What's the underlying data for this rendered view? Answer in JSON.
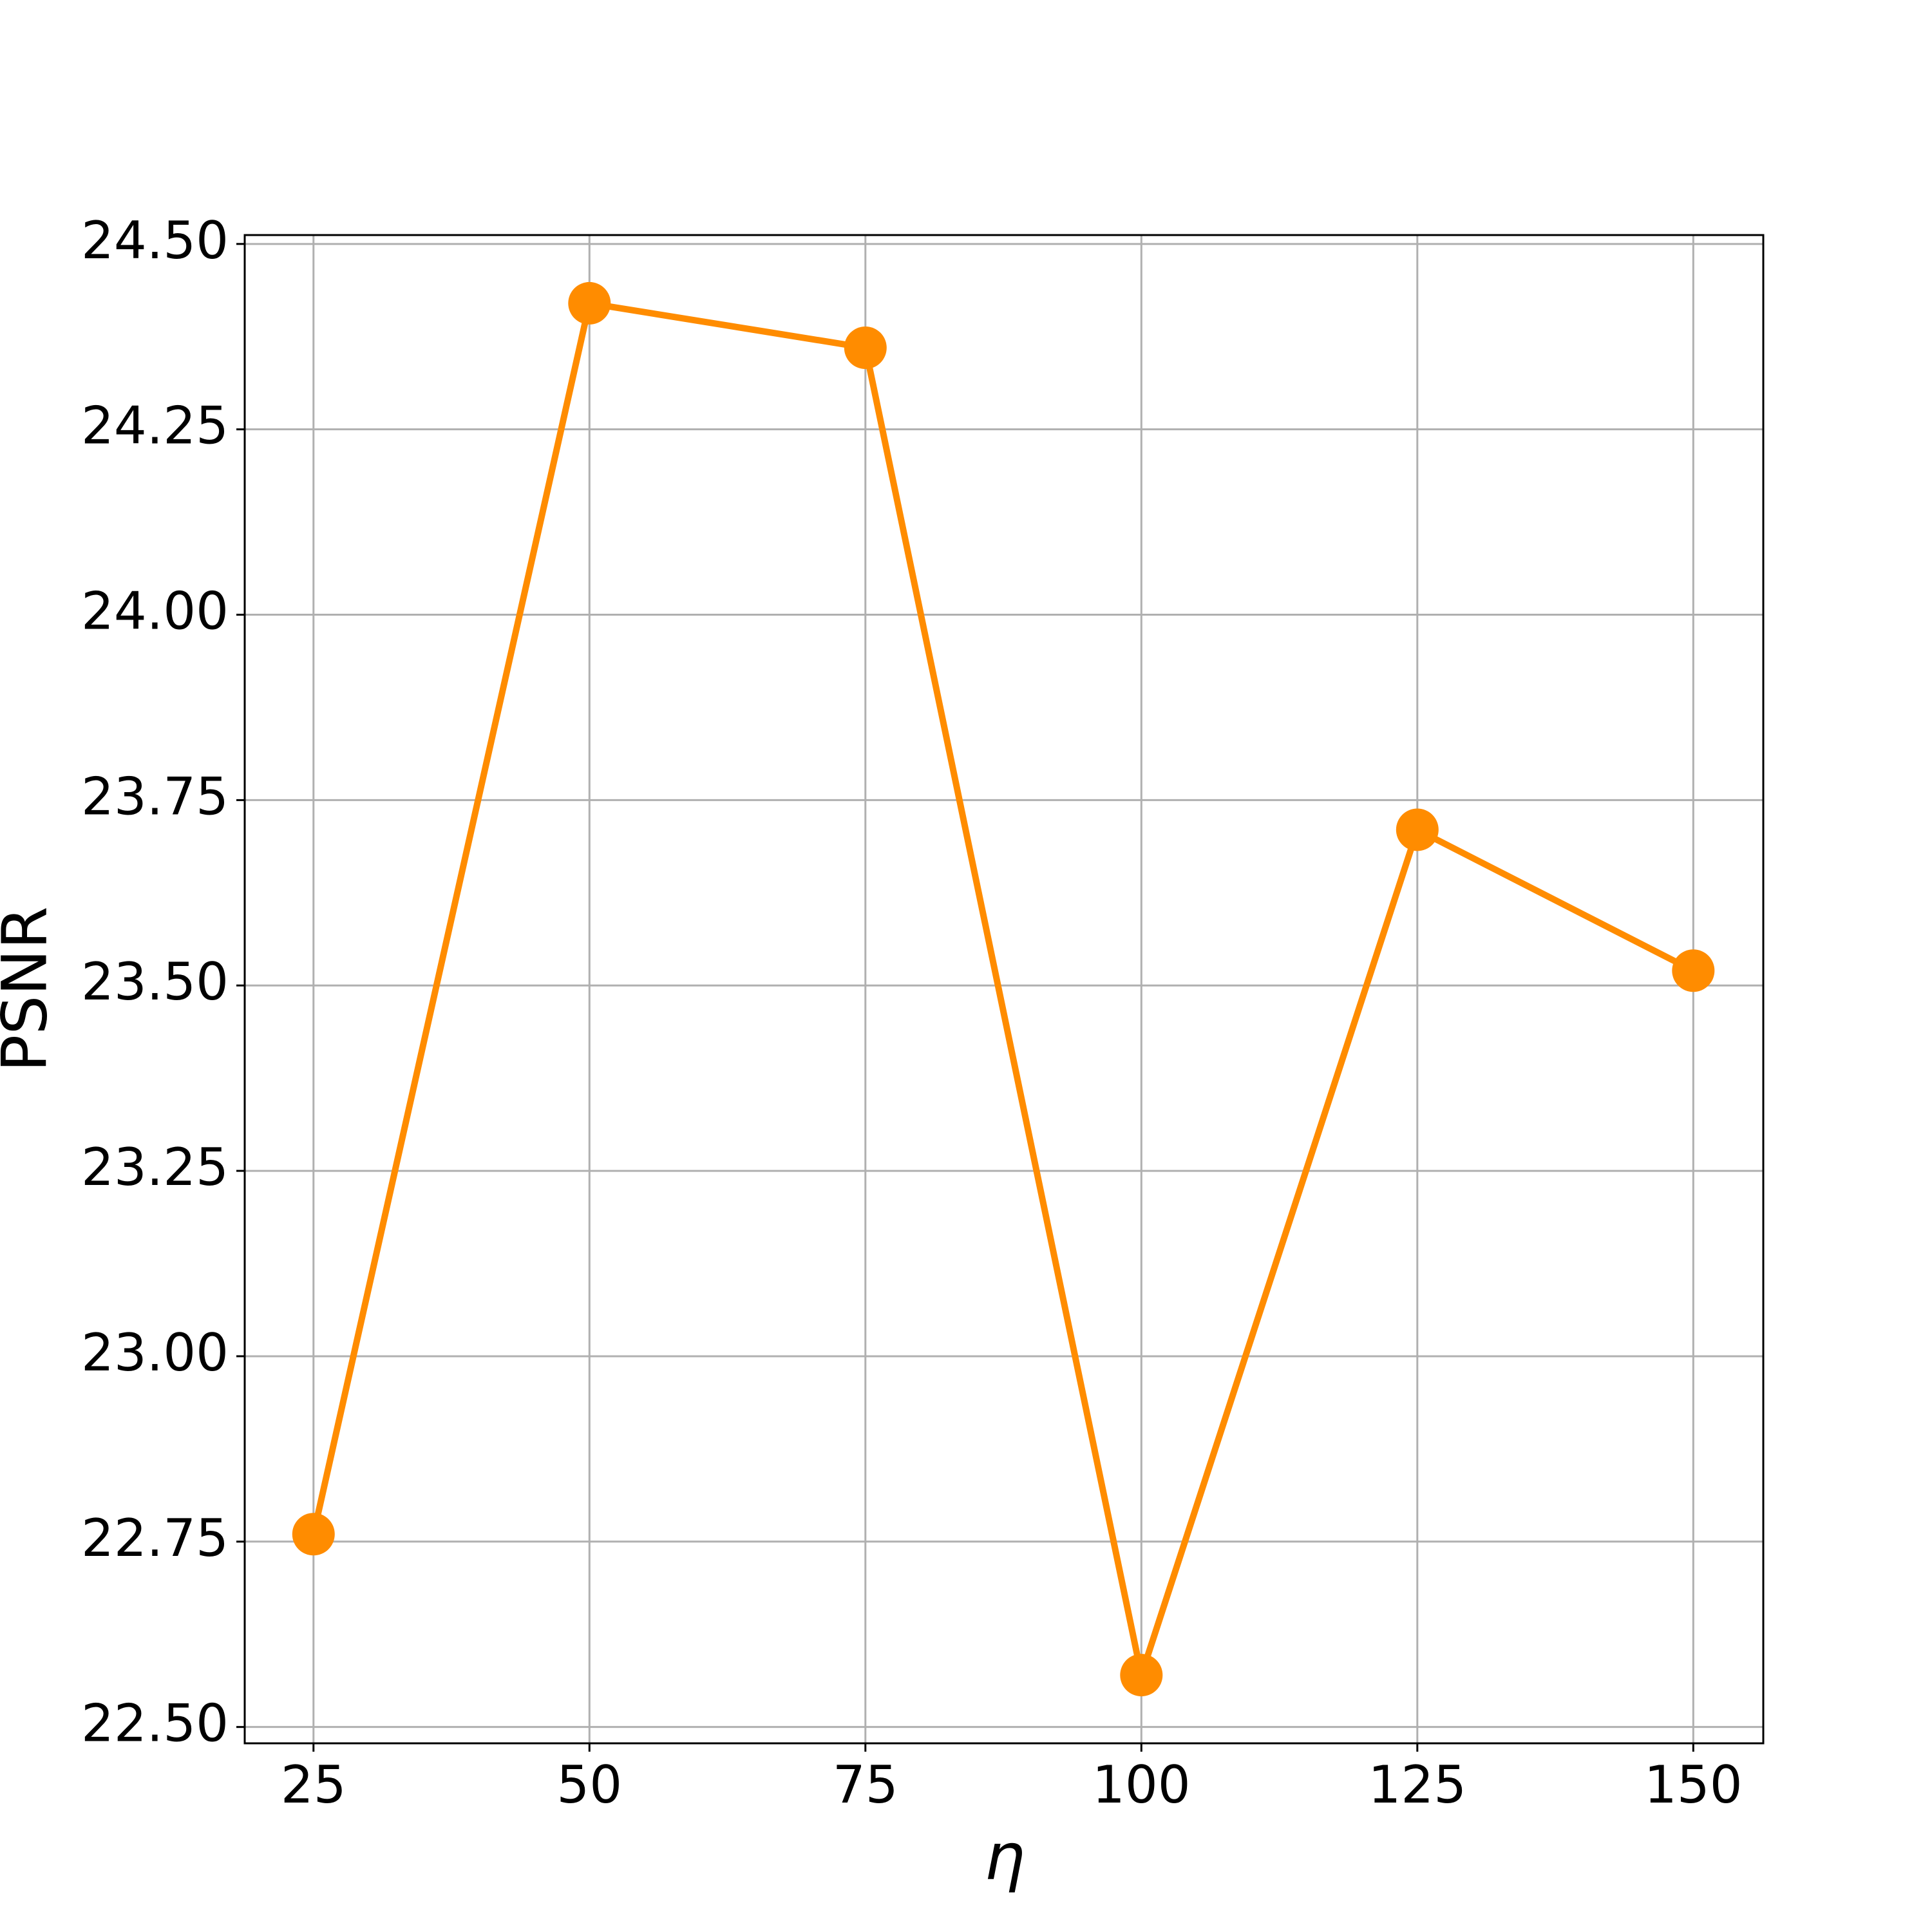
{
  "chart_data": {
    "type": "line",
    "x_label": "η",
    "y_label": "PSNR",
    "x": [
      25,
      50,
      75,
      100,
      125,
      150
    ],
    "series": [
      {
        "color": "#ff8c00",
        "values": [
          22.76,
          24.42,
          24.36,
          22.57,
          23.71,
          23.52
        ]
      }
    ],
    "xlim": [
      18.77,
      156.34
    ],
    "xticks": [
      25,
      50,
      75,
      100,
      125,
      150
    ],
    "ylim": [
      22.478,
      24.512
    ],
    "yticks": [
      {
        "value": 22.5,
        "label": "22.50"
      },
      {
        "value": 22.75,
        "label": "22.75"
      },
      {
        "value": 23.0,
        "label": "23.00"
      },
      {
        "value": 23.25,
        "label": "23.25"
      },
      {
        "value": 23.5,
        "label": "23.50"
      },
      {
        "value": 23.75,
        "label": "23.75"
      },
      {
        "value": 24.0,
        "label": "24.00"
      },
      {
        "value": 24.25,
        "label": "24.25"
      },
      {
        "value": 24.5,
        "label": "24.50"
      }
    ],
    "grid": true
  }
}
